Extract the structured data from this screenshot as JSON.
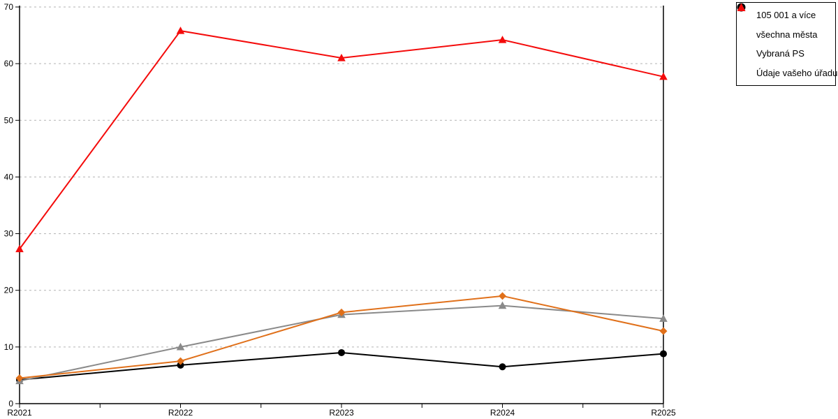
{
  "chart_data": {
    "type": "line",
    "categories": [
      "R2021",
      "R2022",
      "R2023",
      "R2024",
      "R2025"
    ],
    "ylim": [
      0,
      70
    ],
    "yticks": [
      0,
      10,
      20,
      30,
      40,
      50,
      60,
      70
    ],
    "grid": "horizontal-dashed",
    "grid_color": "#b3b3b3",
    "axis_color": "#000000",
    "legend_position": "top-right",
    "title": "",
    "xlabel": "",
    "ylabel": "",
    "series": [
      {
        "name": "105 001 a více",
        "marker": "diamond",
        "color": "#E0701A",
        "values": [
          4.5,
          7.5,
          16.1,
          19.0,
          12.8
        ]
      },
      {
        "name": "všechna města",
        "marker": "circle",
        "color": "#000000",
        "values": [
          4.2,
          6.8,
          9.0,
          6.5,
          8.8
        ]
      },
      {
        "name": "Vybraná PS",
        "marker": "triangle",
        "color": "#8A8A8A",
        "values": [
          4.0,
          10.0,
          15.7,
          17.3,
          15.0
        ]
      },
      {
        "name": "Údaje vašeho úřadu",
        "marker": "triangle",
        "color": "#F40B0B",
        "values": [
          27.3,
          65.8,
          61.0,
          64.2,
          57.7
        ]
      }
    ]
  }
}
